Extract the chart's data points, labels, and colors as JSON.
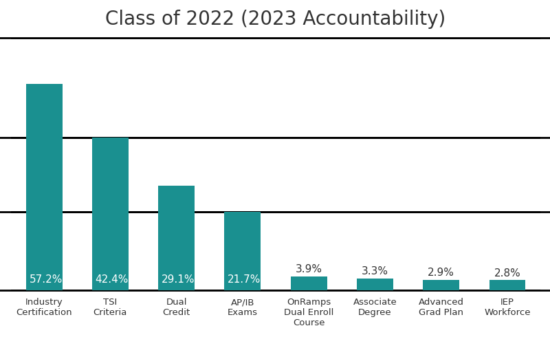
{
  "title": "Class of 2022 (2023 Accountability)",
  "categories": [
    "Industry\nCertification",
    "TSI\nCriteria",
    "Dual\nCredit",
    "AP/IB\nExams",
    "OnRamps\nDual Enroll\nCourse",
    "Associate\nDegree",
    "Advanced\nGrad Plan",
    "IEP\nWorkforce"
  ],
  "values": [
    57.2,
    42.4,
    29.1,
    21.7,
    3.9,
    3.3,
    2.9,
    2.8
  ],
  "labels": [
    "57.2%",
    "42.4%",
    "29.1%",
    "21.7%",
    "3.9%",
    "3.3%",
    "2.9%",
    "2.8%"
  ],
  "bar_color": "#1a9090",
  "label_color_inside": "#ffffff",
  "label_color_outside": "#333333",
  "inside_threshold": 10,
  "background_color": "#ffffff",
  "title_fontsize": 20,
  "label_fontsize": 11,
  "tick_fontsize": 9.5,
  "ylim": [
    0,
    70
  ],
  "hlines_data": [
    70,
    42.4,
    21.7,
    0
  ],
  "figsize": [
    8.0,
    4.9
  ],
  "dpi": 100
}
